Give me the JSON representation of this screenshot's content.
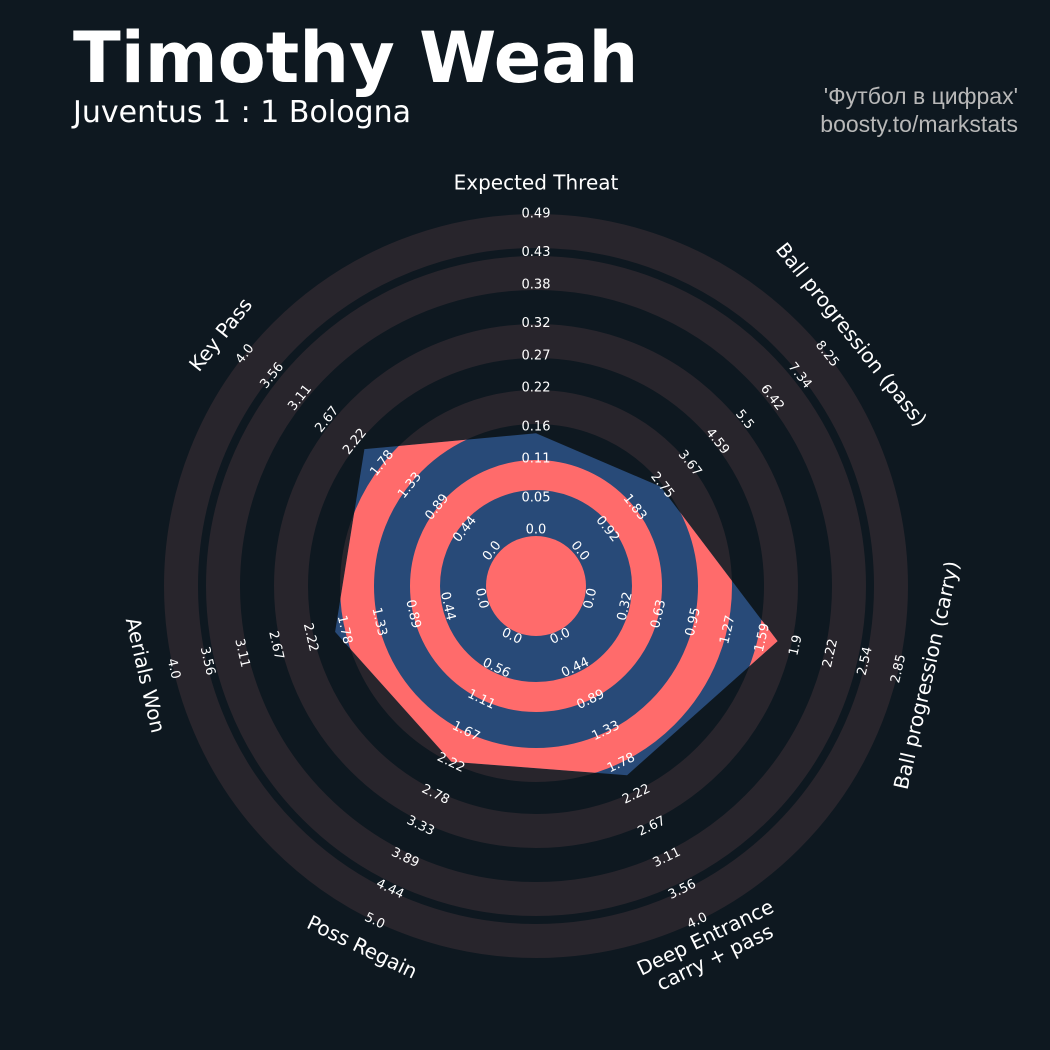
{
  "chart_data": {
    "type": "radar",
    "title": "Timothy Weah",
    "subtitle": "Juventus 1 : 1 Bologna",
    "credits": [
      "'Футбол в цифрах'",
      "boosty.to/markstats"
    ],
    "colors": {
      "background": "#0e1820",
      "rings": "#28252c",
      "polygon": "#284a78",
      "polygon_rings": "#ff6b6b"
    },
    "params": [
      {
        "name": "Expected Threat",
        "range": [
          0,
          0.49
        ],
        "ticks": [
          {
            "value": 0,
            "label": "0.0"
          },
          0.05,
          0.11,
          0.16,
          0.22,
          0.27,
          0.32,
          0.38,
          0.43,
          0.49
        ]
      },
      {
        "name": "Ball progression (pass)",
        "range": [
          0,
          8.25
        ],
        "ticks": [
          {
            "value": 0,
            "label": "0.0"
          },
          0.92,
          1.83,
          2.75,
          3.67,
          4.59,
          5.5,
          6.42,
          7.34,
          8.25
        ]
      },
      {
        "name": "Ball progression (carry)",
        "range": [
          0,
          2.85
        ],
        "ticks": [
          {
            "value": 0,
            "label": "0.0"
          },
          0.32,
          0.63,
          0.95,
          1.27,
          1.59,
          1.9,
          2.22,
          2.54,
          2.85
        ]
      },
      {
        "name": [
          "Deep Entrance",
          "carry + pass"
        ],
        "range": [
          0,
          4
        ],
        "ticks": [
          {
            "value": 0,
            "label": "0.0"
          },
          0.44,
          0.89,
          1.33,
          1.78,
          2.22,
          2.67,
          3.11,
          3.56,
          {
            "value": 4,
            "label": "4.0"
          }
        ]
      },
      {
        "name": "Poss Regain",
        "range": [
          0,
          5
        ],
        "ticks": [
          {
            "value": 0,
            "label": "0.0"
          },
          0.56,
          1.11,
          1.67,
          2.22,
          2.78,
          3.33,
          3.89,
          4.44,
          {
            "value": 5,
            "label": "5.0"
          }
        ]
      },
      {
        "name": "Aerials Won",
        "range": [
          0,
          4
        ],
        "ticks": [
          {
            "value": 0,
            "label": "0.0"
          },
          0.44,
          0.89,
          1.33,
          1.78,
          2.22,
          2.67,
          3.11,
          3.56,
          {
            "value": 4,
            "label": "4.0"
          }
        ]
      },
      {
        "name": "Key Pass",
        "range": [
          0,
          4
        ],
        "ticks": [
          {
            "value": 0,
            "label": "0.0"
          },
          0.44,
          0.89,
          1.33,
          1.78,
          2.22,
          2.67,
          3.11,
          3.56,
          {
            "value": 4,
            "label": "4.0"
          }
        ]
      }
    ],
    "values": [
      0.15,
      2.7,
      1.73,
      1.95,
      2.2,
      1.9,
      2.07
    ]
  }
}
